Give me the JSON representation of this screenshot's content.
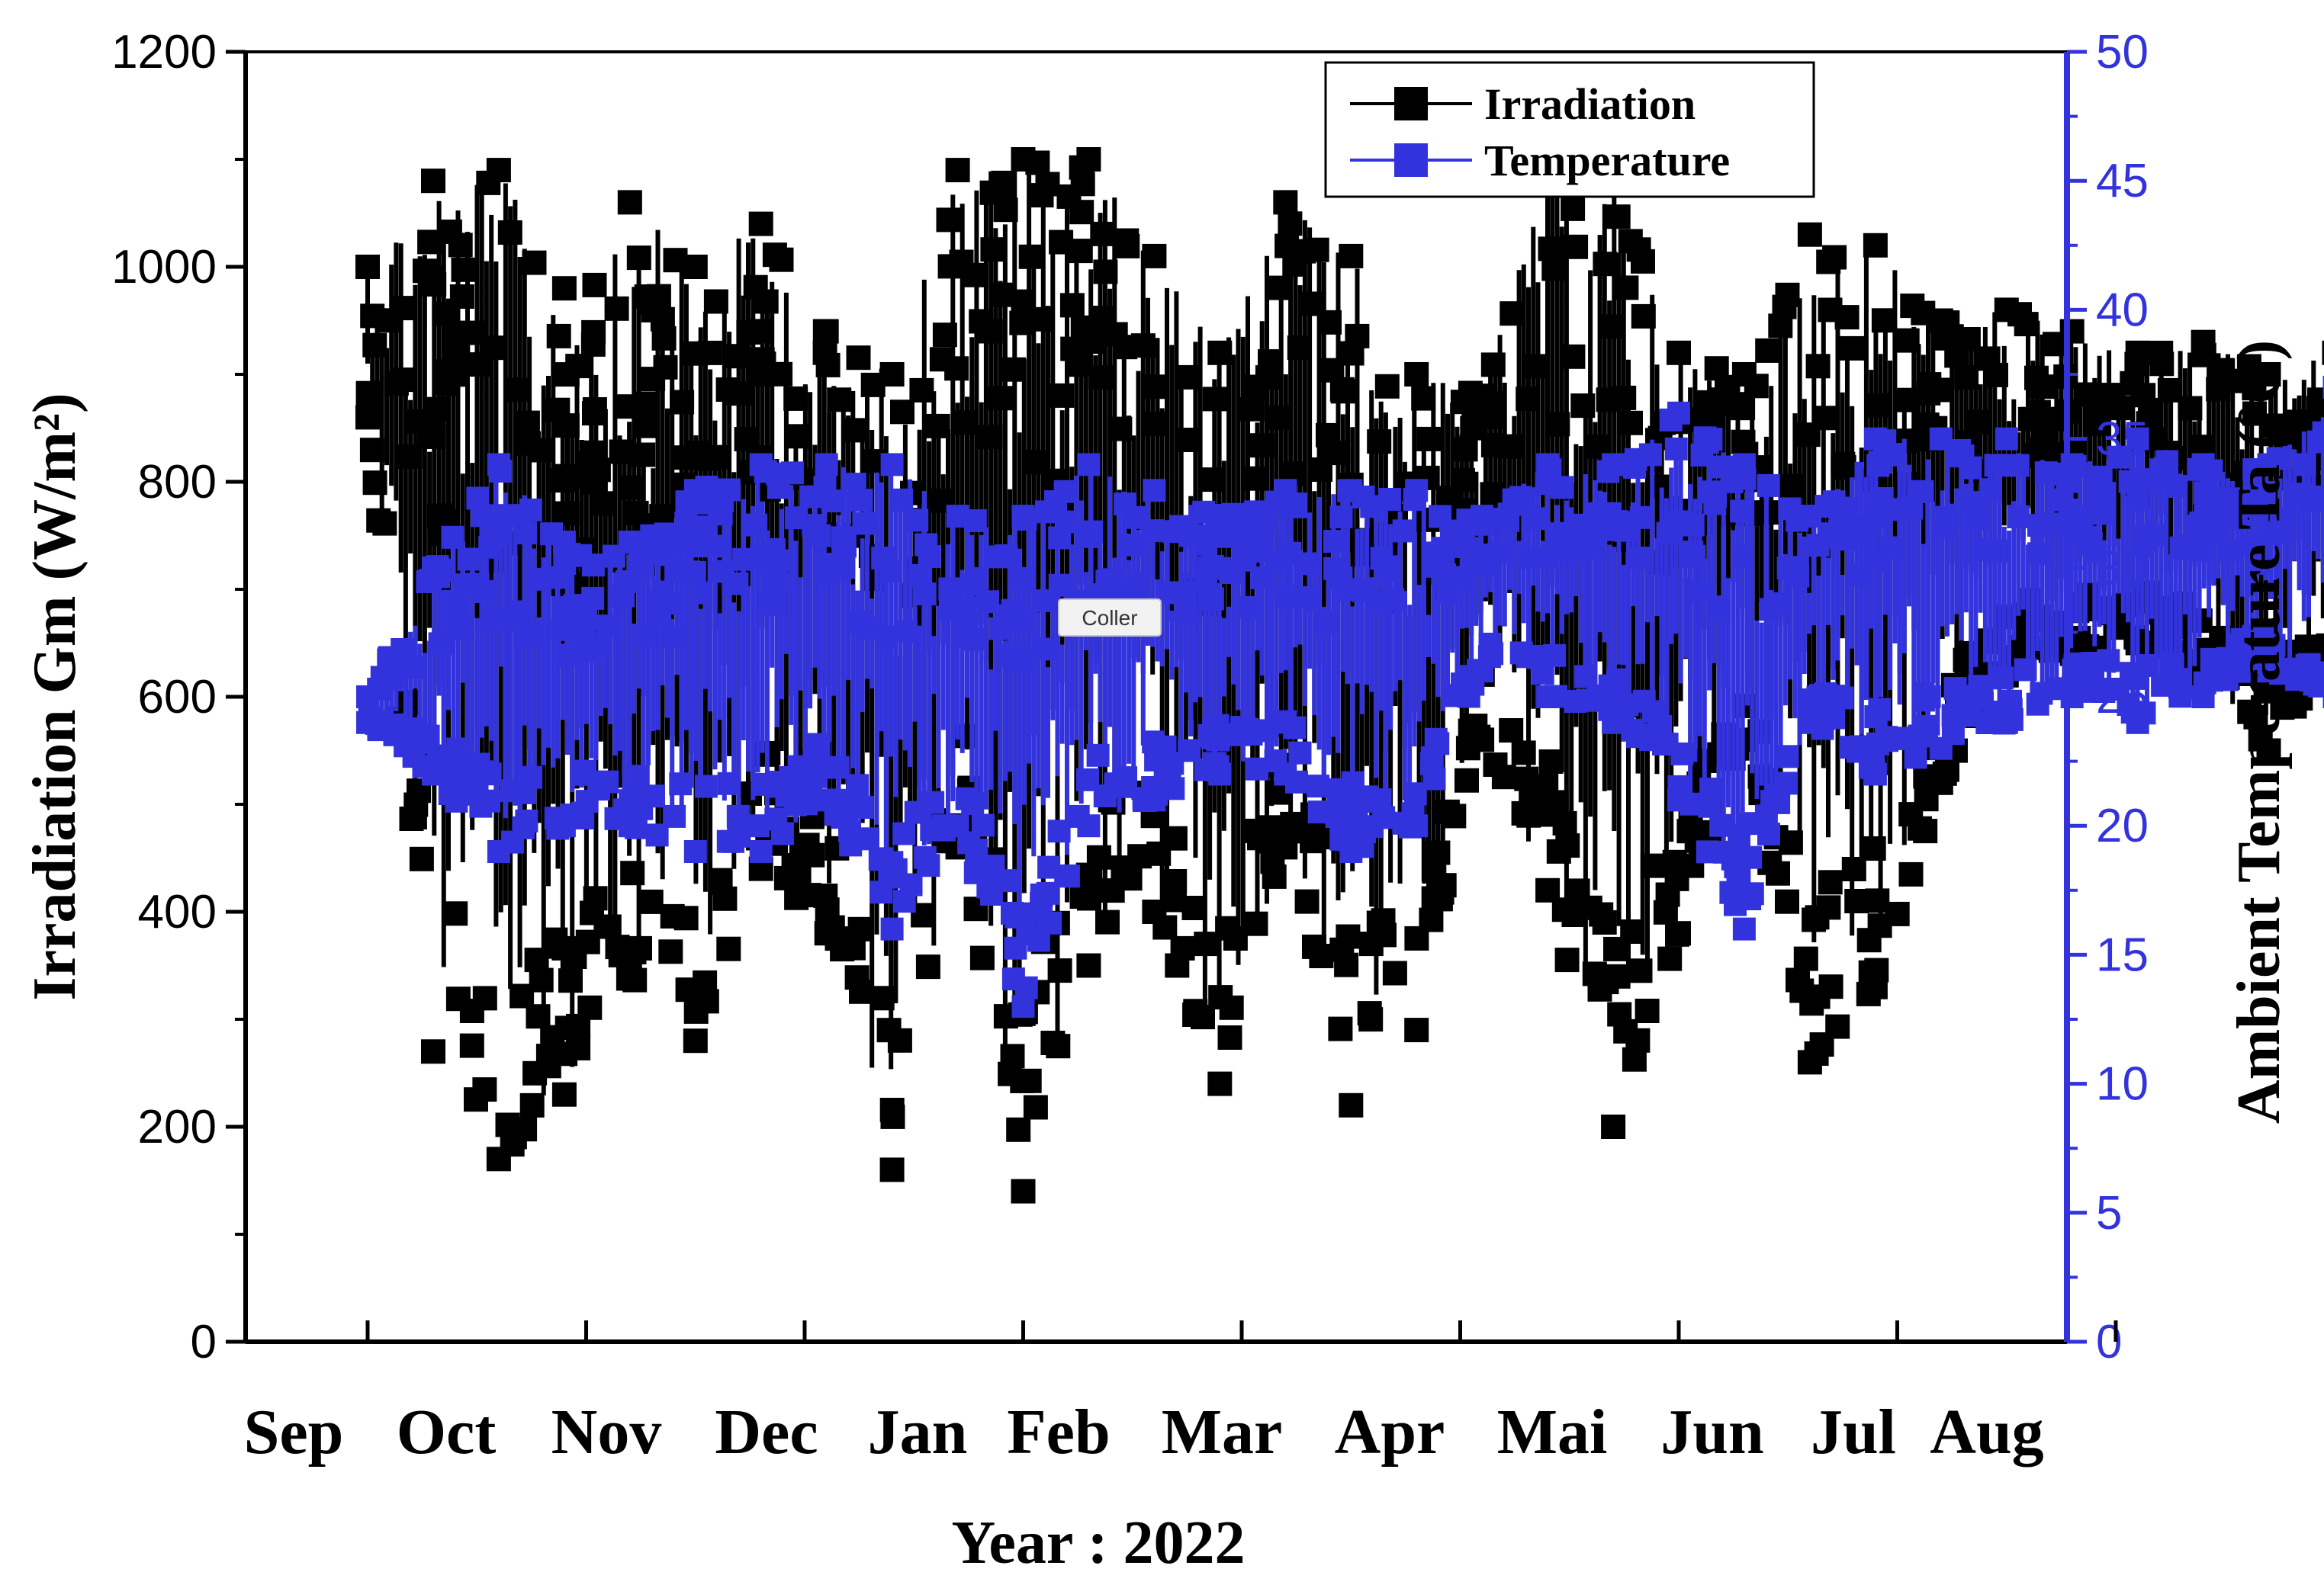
{
  "chart_data": {
    "type": "line",
    "xlabel": "Year : 2022",
    "ylabel_left": "Irradiation Gm (W/m²)",
    "ylabel_right": "Ambient Temperature Ta (°C)",
    "ylim_left": [
      0,
      1200
    ],
    "ylim_right": [
      0,
      50
    ],
    "yticks_left": [
      0,
      200,
      400,
      600,
      800,
      1000,
      1200
    ],
    "yticks_right": [
      0,
      5,
      10,
      15,
      20,
      25,
      30,
      35,
      40,
      45,
      50
    ],
    "months": [
      "Sep",
      "Oct",
      "Nov",
      "Dec",
      "Jan",
      "Feb",
      "Mar",
      "Apr",
      "Mai",
      "Jun",
      "Jul",
      "Aug"
    ],
    "grid": false,
    "legend_position": "top-right",
    "series": [
      {
        "name": "Irradiation",
        "axis": "left",
        "color": "#000000",
        "x": [
          0.0,
          0.3,
          0.6,
          0.9,
          1.2,
          1.5,
          1.8,
          2.1,
          2.4,
          2.7,
          3.0,
          3.3,
          3.6,
          3.9,
          4.2,
          4.5,
          4.8,
          5.1,
          5.4,
          5.7,
          6.0,
          6.3,
          6.6,
          6.9,
          7.2,
          7.5,
          7.8,
          8.1,
          8.4,
          8.7,
          9.0,
          9.3,
          9.6,
          9.9,
          10.2,
          10.5,
          10.8,
          11.1,
          11.3
        ],
        "min": [
          860,
          270,
          170,
          230,
          340,
          280,
          440,
          380,
          160,
          460,
          140,
          350,
          400,
          240,
          460,
          220,
          290,
          560,
          420,
          200,
          380,
          560,
          260,
          330,
          520,
          620,
          640,
          650,
          620,
          550,
          640,
          420,
          520,
          120,
          200,
          340,
          500,
          620,
          620
        ],
        "max": [
          1000,
          1080,
          1090,
          980,
          1060,
          1000,
          1040,
          940,
          900,
          1090,
          1100,
          1100,
          1010,
          920,
          1060,
          1010,
          900,
          880,
          1090,
          1080,
          920,
          900,
          1030,
          1020,
          950,
          960,
          940,
          920,
          930,
          900,
          920,
          900,
          950,
          1000,
          1070,
          940,
          940,
          900,
          900
        ]
      },
      {
        "name": "Temperature",
        "axis": "right",
        "color": "#3333dd",
        "x": [
          0.0,
          0.3,
          0.6,
          0.9,
          1.2,
          1.5,
          1.8,
          2.1,
          2.4,
          2.7,
          3.0,
          3.3,
          3.6,
          3.9,
          4.2,
          4.5,
          4.8,
          5.1,
          5.4,
          5.7,
          6.0,
          6.3,
          6.6,
          6.9,
          7.2,
          7.5,
          7.8,
          8.1,
          8.4,
          8.7,
          9.0,
          9.3,
          9.6,
          9.9,
          10.2,
          10.5,
          10.8,
          11.1,
          11.3
        ],
        "min": [
          24,
          22,
          19,
          20,
          20,
          19,
          19,
          21,
          16,
          20,
          13,
          20,
          21,
          22,
          22,
          19,
          20,
          26,
          25,
          24,
          21,
          16,
          24,
          22,
          23,
          24,
          25,
          24,
          25,
          26,
          25,
          20,
          22,
          12,
          19,
          22,
          18,
          23,
          23
        ],
        "max": [
          25,
          30,
          34,
          31,
          31,
          33,
          34,
          34,
          34,
          32,
          32,
          34,
          33,
          32,
          33,
          33,
          33,
          32,
          34,
          34,
          36,
          34,
          32,
          35,
          35,
          35,
          34,
          35,
          34,
          34,
          37,
          32,
          36,
          37,
          38,
          36,
          36,
          33,
          31
        ]
      }
    ],
    "annotations": [
      "Coller"
    ]
  }
}
